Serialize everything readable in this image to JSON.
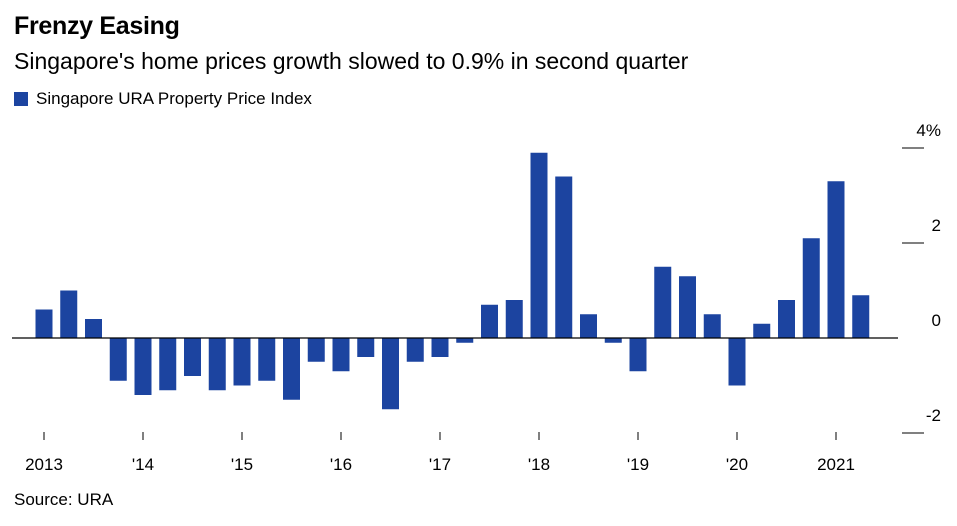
{
  "header": {
    "title": "Frenzy Easing",
    "subtitle": "Singapore's home prices growth slowed to 0.9% in second quarter"
  },
  "legend": {
    "label": "Singapore URA Property Price Index"
  },
  "footer": {
    "source": "Source: URA"
  },
  "colors": {
    "bar": "#1c44a0",
    "axis": "#000000",
    "text": "#000000"
  },
  "chart_data": {
    "type": "bar",
    "title": "Frenzy Easing",
    "subtitle": "Singapore's home prices growth slowed to 0.9% in second quarter",
    "series": [
      {
        "name": "Singapore URA Property Price Index",
        "values": [
          0.6,
          1.0,
          0.4,
          -0.9,
          -1.2,
          -1.1,
          -0.8,
          -1.1,
          -1.0,
          -0.9,
          -1.3,
          -0.5,
          -0.7,
          -0.4,
          -1.5,
          -0.5,
          -0.4,
          -0.1,
          0.7,
          0.8,
          3.9,
          3.4,
          0.5,
          -0.1,
          -0.7,
          1.5,
          1.3,
          0.5,
          -1.0,
          0.3,
          0.8,
          2.1,
          3.3,
          0.9
        ]
      }
    ],
    "categories": [
      "2013Q1",
      "2013Q2",
      "2013Q3",
      "2013Q4",
      "2014Q1",
      "2014Q2",
      "2014Q3",
      "2014Q4",
      "2015Q1",
      "2015Q2",
      "2015Q3",
      "2015Q4",
      "2016Q1",
      "2016Q2",
      "2016Q3",
      "2016Q4",
      "2017Q1",
      "2017Q2",
      "2017Q3",
      "2017Q4",
      "2018Q1",
      "2018Q2",
      "2018Q3",
      "2018Q4",
      "2019Q1",
      "2019Q2",
      "2019Q3",
      "2019Q4",
      "2020Q1",
      "2020Q2",
      "2020Q3",
      "2020Q4",
      "2021Q1",
      "2021Q2"
    ],
    "x_tick_labels": [
      "2013",
      "'14",
      "'15",
      "'16",
      "'17",
      "'18",
      "'19",
      "'20",
      "2021"
    ],
    "y_tick_labels": [
      "4%",
      "2",
      "0",
      "-2"
    ],
    "y_ticks": [
      4,
      2,
      0,
      -2
    ],
    "ylim": [
      -2.2,
      4.3
    ],
    "grid": false,
    "legend_position": "top-left",
    "xlabel": "",
    "ylabel": ""
  }
}
